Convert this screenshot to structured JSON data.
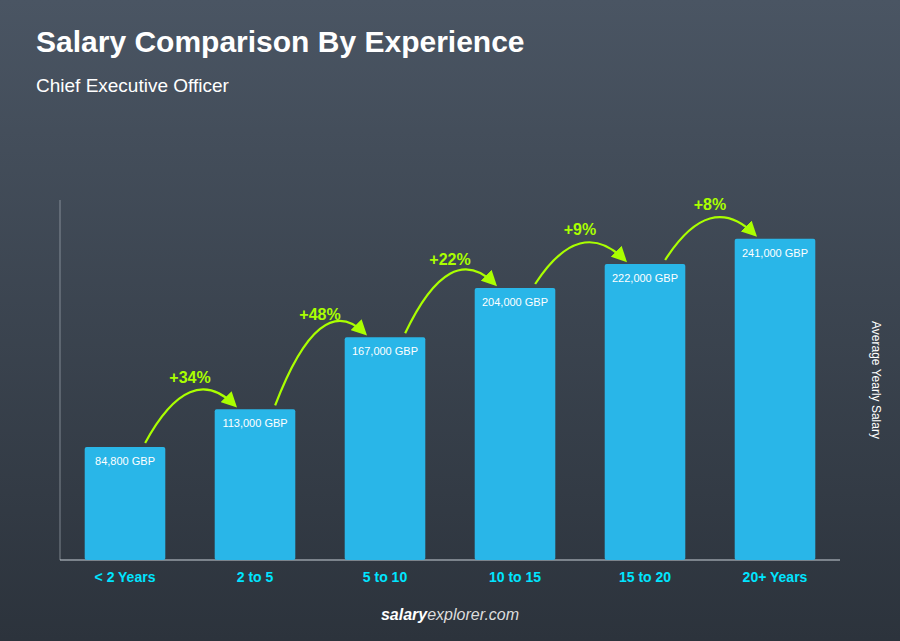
{
  "chart_data": {
    "type": "bar",
    "title": "Salary Comparison By Experience",
    "subtitle": "Chief Executive Officer",
    "y_label": "Average Yearly Salary",
    "categories": [
      "< 2 Years",
      "2 to 5",
      "5 to 10",
      "10 to 15",
      "15 to 20",
      "20+ Years"
    ],
    "values": [
      84800,
      113000,
      167000,
      204000,
      222000,
      241000
    ],
    "value_labels": [
      "84,800 GBP",
      "113,000 GBP",
      "167,000 GBP",
      "204,000 GBP",
      "222,000 GBP",
      "241,000 GBP"
    ],
    "data_labels": true,
    "annotations": [
      "+34%",
      "+48%",
      "+22%",
      "+9%",
      "+8%"
    ],
    "footer": [
      "salary",
      "explorer.com"
    ],
    "color": "#29b6e8",
    "ylim": [
      0,
      270000
    ],
    "grid": false,
    "tick_labels": "x"
  }
}
